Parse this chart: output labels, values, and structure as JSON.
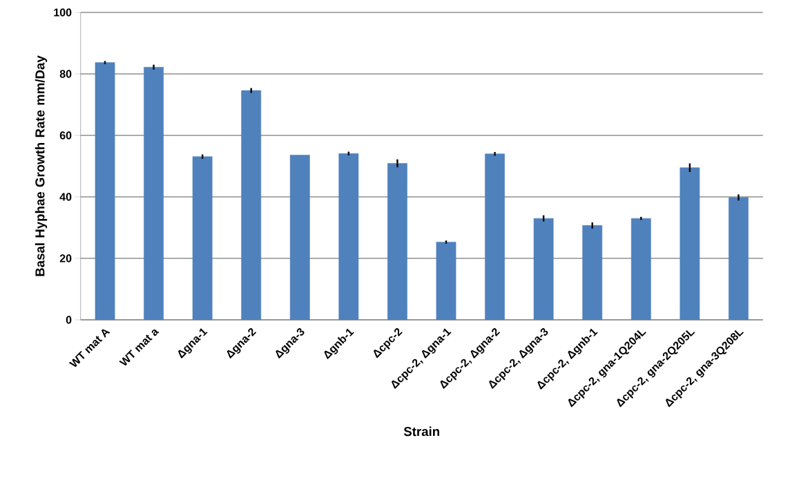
{
  "chart_data": {
    "type": "bar",
    "xlabel": "Strain",
    "ylabel": "Basal Hyphae Growth Rate mm/Day",
    "categories": [
      "WT mat A",
      "WT mat a",
      "Δgna-1",
      "Δgna-2",
      "Δgna-3",
      "Δgnb-1",
      "Δcpc-2",
      "Δcpc-2, Δgna-1",
      "Δcpc-2, Δgna-2",
      "Δcpc-2, Δgna-3",
      "Δcpc-2, Δgnb-1",
      "Δcpc-2, gna-1Q204L",
      "Δcpc-2, gna-2Q205L",
      "Δcpc-2, gna-3Q208L"
    ],
    "values": [
      83.7,
      82.2,
      53.1,
      74.6,
      53.6,
      54.1,
      50.9,
      25.3,
      54.0,
      33.0,
      30.7,
      33.0,
      49.5,
      39.8
    ],
    "errors": [
      0.5,
      0.8,
      0.7,
      0.8,
      null,
      0.6,
      1.3,
      0.5,
      0.6,
      1.0,
      1.0,
      0.5,
      1.4,
      1.0
    ],
    "color": "#4f81bd",
    "ylim": [
      0,
      100
    ],
    "yticks": [
      0,
      20,
      40,
      60,
      80,
      100
    ],
    "grid": "y"
  }
}
